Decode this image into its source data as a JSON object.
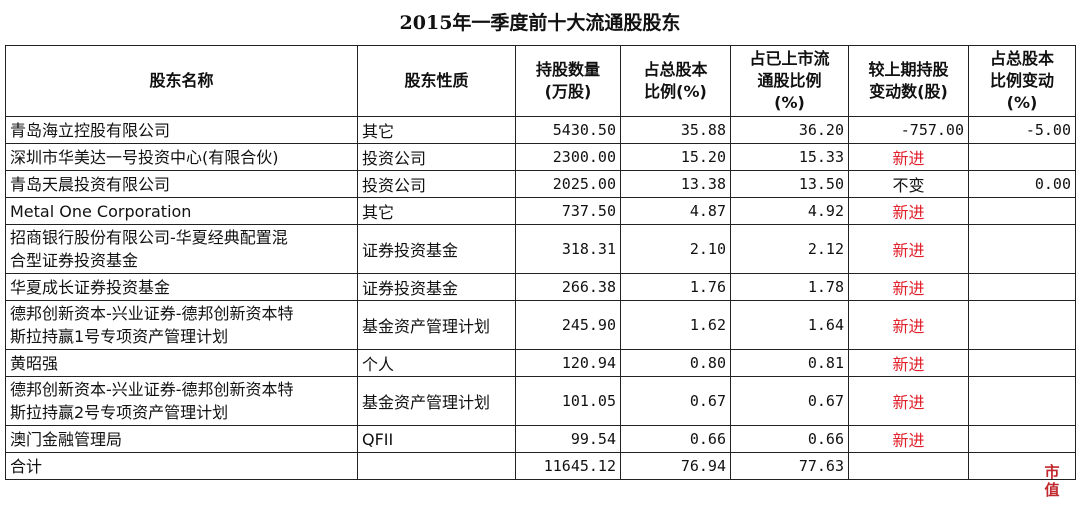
{
  "title": "2015年一季度前十大流通股股东",
  "headers": [
    "股东名称",
    "股东性质",
    "持股数量\n(万股)",
    "占总股本\n比例(%)",
    "占已上市流\n通股比例\n(%)",
    "较上期持股\n变动数(股)",
    "占总股本\n比例变动\n(%)"
  ],
  "rows": [
    {
      "name": "青岛海立控股有限公司",
      "type": "其它",
      "shares": "5430.50",
      "pct_total": "35.88",
      "pct_float": "36.20",
      "change": "-757.00",
      "pct_change": "-5.00",
      "tall": false
    },
    {
      "name": "深圳市华美达一号投资中心(有限合伙)",
      "type": "投资公司",
      "shares": "2300.00",
      "pct_total": "15.20",
      "pct_float": "15.33",
      "change": "新进",
      "pct_change": "",
      "tall": false
    },
    {
      "name": "青岛天晨投资有限公司",
      "type": "投资公司",
      "shares": "2025.00",
      "pct_total": "13.38",
      "pct_float": "13.50",
      "change": "不变",
      "pct_change": "0.00",
      "tall": false
    },
    {
      "name": "Metal One Corporation",
      "type": "其它",
      "shares": "737.50",
      "pct_total": "4.87",
      "pct_float": "4.92",
      "change": "新进",
      "pct_change": "",
      "tall": false
    },
    {
      "name": "招商银行股份有限公司-华夏经典配置混\n合型证券投资基金",
      "type": "证券投资基金",
      "shares": "318.31",
      "pct_total": "2.10",
      "pct_float": "2.12",
      "change": "新进",
      "pct_change": "",
      "tall": true
    },
    {
      "name": "华夏成长证券投资基金",
      "type": "证券投资基金",
      "shares": "266.38",
      "pct_total": "1.76",
      "pct_float": "1.78",
      "change": "新进",
      "pct_change": "",
      "tall": false
    },
    {
      "name": "德邦创新资本-兴业证券-德邦创新资本特\n斯拉持赢1号专项资产管理计划",
      "type": "基金资产管理计划",
      "shares": "245.90",
      "pct_total": "1.62",
      "pct_float": "1.64",
      "change": "新进",
      "pct_change": "",
      "tall": true
    },
    {
      "name": "黄昭强",
      "type": "个人",
      "shares": "120.94",
      "pct_total": "0.80",
      "pct_float": "0.81",
      "change": "新进",
      "pct_change": "",
      "tall": false
    },
    {
      "name": "德邦创新资本-兴业证券-德邦创新资本特\n斯拉持赢2号专项资产管理计划",
      "type": "基金资产管理计划",
      "shares": "101.05",
      "pct_total": "0.67",
      "pct_float": "0.67",
      "change": "新进",
      "pct_change": "",
      "tall": true
    },
    {
      "name": "澳门金融管理局",
      "type": "QFII",
      "shares": "99.54",
      "pct_total": "0.66",
      "pct_float": "0.66",
      "change": "新进",
      "pct_change": "",
      "tall": false
    },
    {
      "name": "合计",
      "type": "",
      "shares": "11645.12",
      "pct_total": "76.94",
      "pct_float": "77.63",
      "change": "",
      "pct_change": "",
      "tall": false
    }
  ],
  "logo_text": "市值风云",
  "colors": {
    "new_entry": "#e0202a",
    "logo": "#c0282e"
  }
}
